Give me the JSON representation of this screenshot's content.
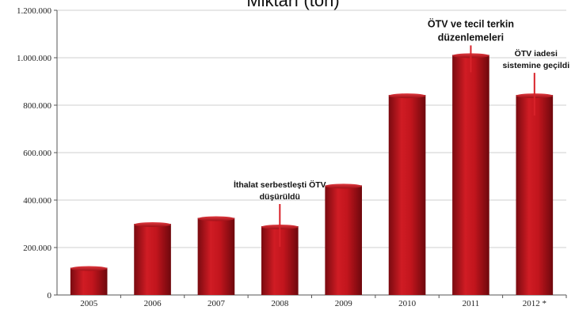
{
  "chart_data": {
    "type": "bar",
    "title": "Miktarı (ton)",
    "xlabel": "",
    "ylabel": "",
    "categories": [
      "2005",
      "2006",
      "2007",
      "2008",
      "2009",
      "2010",
      "2011",
      "2012 *"
    ],
    "values": [
      115000,
      300000,
      325000,
      290000,
      462000,
      843000,
      1012000,
      843000
    ],
    "ylim": [
      0,
      1200000
    ],
    "yticks": [
      0,
      200000,
      400000,
      600000,
      800000,
      1000000,
      1200000
    ],
    "ytick_labels": [
      "0",
      "200.000",
      "400.000",
      "600.000",
      "800.000",
      "1.000.000",
      "1.200.000"
    ],
    "grid": true,
    "legend": "none",
    "bar_color": "#b5121b",
    "annotations": [
      {
        "category": "2008",
        "lines": [
          "İthalat serbestleşti ÖTV",
          "düşürüldü"
        ]
      },
      {
        "category": "2011",
        "lines": [
          "ÖTV ve tecil terkin",
          "düzenlemeleri"
        ]
      },
      {
        "category": "2012 *",
        "lines": [
          "ÖTV iadesi",
          "sistemine geçildi"
        ]
      }
    ]
  }
}
